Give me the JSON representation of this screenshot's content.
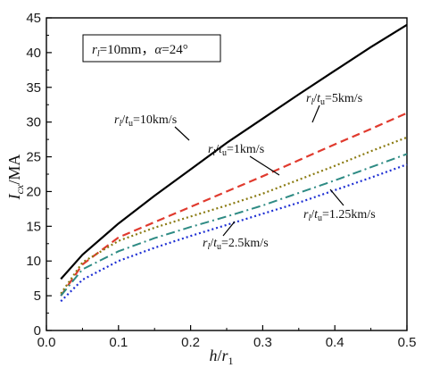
{
  "chart_data": {
    "type": "line",
    "xlabel_italic": "h",
    "xlabel_sep": "/",
    "xlabel_italic2": "r",
    "xlabel_sub": "1",
    "ylabel_main": "I",
    "ylabel_sub": "cx",
    "ylabel_unit": "/MA",
    "xlim": [
      0,
      0.5
    ],
    "ylim": [
      0,
      45
    ],
    "xticks": [
      0.0,
      0.1,
      0.2,
      0.3,
      0.4,
      0.5
    ],
    "xtick_labels": [
      "0.0",
      "0.1",
      "0.2",
      "0.3",
      "0.4",
      "0.5"
    ],
    "yticks": [
      0,
      5,
      10,
      15,
      20,
      25,
      30,
      35,
      40,
      45
    ],
    "ytick_labels": [
      "0",
      "5",
      "10",
      "15",
      "20",
      "25",
      "30",
      "35",
      "40",
      "45"
    ],
    "grid": false,
    "parameter_box": {
      "r_sym": "r",
      "r_sub": "l",
      "r_val": "=10mm，",
      "alpha_sym": "α",
      "alpha_val": "=24°"
    },
    "series": [
      {
        "name": "rl/tu=10km/s",
        "label_prefix": "r",
        "label_sub1": "l",
        "label_mid": "/",
        "label_t": "t",
        "label_sub2": "u",
        "label_val": "=10km/s",
        "color": "#000000",
        "style": "solid",
        "x": [
          0.02,
          0.05,
          0.1,
          0.15,
          0.2,
          0.25,
          0.3,
          0.35,
          0.4,
          0.45,
          0.5
        ],
        "y": [
          7.4,
          10.9,
          15.4,
          19.4,
          23.2,
          27.0,
          30.5,
          34.0,
          37.4,
          40.8,
          44.0
        ]
      },
      {
        "name": "rl/tu=5km/s",
        "label_prefix": "r",
        "label_sub1": "l",
        "label_mid": "/",
        "label_t": "t",
        "label_sub2": "u",
        "label_val": "=5km/s",
        "color": "#e03a2e",
        "style": "dashed",
        "x": [
          0.02,
          0.05,
          0.1,
          0.15,
          0.2,
          0.25,
          0.3,
          0.35,
          0.4,
          0.45,
          0.5
        ],
        "y": [
          5.0,
          9.5,
          13.4,
          15.6,
          17.8,
          20.0,
          22.2,
          24.5,
          26.8,
          29.0,
          31.3
        ]
      },
      {
        "name": "rl/tu=1km/s",
        "label_prefix": "r",
        "label_sub1": "l",
        "label_mid": "/",
        "label_t": "t",
        "label_sub2": "u",
        "label_val": "=1km/s",
        "color": "#8a7a10",
        "style": "dotted",
        "x": [
          0.02,
          0.05,
          0.1,
          0.15,
          0.2,
          0.25,
          0.3,
          0.35,
          0.4,
          0.45,
          0.5
        ],
        "y": [
          5.3,
          9.8,
          12.9,
          14.8,
          16.4,
          18.0,
          19.7,
          21.7,
          23.7,
          25.8,
          27.8
        ]
      },
      {
        "name": "rl/tu=1.25km/s",
        "label_prefix": "r",
        "label_sub1": "l",
        "label_mid": "/",
        "label_t": "t",
        "label_sub2": "u",
        "label_val": "=1.25km/s",
        "color": "#2e8b84",
        "style": "dashdot",
        "x": [
          0.02,
          0.05,
          0.1,
          0.15,
          0.2,
          0.25,
          0.3,
          0.35,
          0.4,
          0.45,
          0.5
        ],
        "y": [
          5.0,
          8.8,
          11.4,
          13.3,
          14.9,
          16.4,
          18.0,
          19.8,
          21.6,
          23.5,
          25.4
        ]
      },
      {
        "name": "rl/tu=2.5km/s",
        "label_prefix": "r",
        "label_sub1": "l",
        "label_mid": "/",
        "label_t": "t",
        "label_sub2": "u",
        "label_val": "=2.5km/s",
        "color": "#1e2fd4",
        "style": "dotted",
        "x": [
          0.02,
          0.05,
          0.1,
          0.15,
          0.2,
          0.25,
          0.3,
          0.35,
          0.4,
          0.45,
          0.5
        ],
        "y": [
          4.2,
          7.3,
          10.0,
          11.9,
          13.6,
          15.2,
          16.8,
          18.4,
          20.2,
          22.0,
          23.9
        ]
      }
    ]
  }
}
